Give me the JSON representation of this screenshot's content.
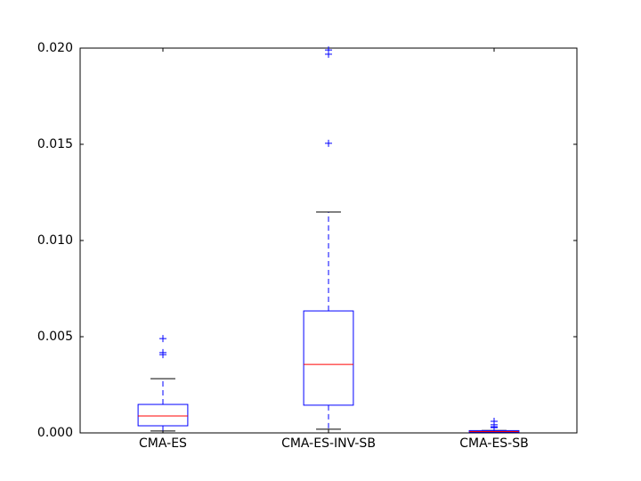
{
  "chart_data": {
    "type": "box",
    "categories": [
      "CMA-ES",
      "CMA-ES-INV-SB",
      "CMA-ES-SB"
    ],
    "boxes": [
      {
        "whislo": 0.0001,
        "q1": 0.00037,
        "med": 0.00088,
        "q3": 0.00148,
        "whishi": 0.00282,
        "fliers": [
          0.00407,
          0.00417,
          0.0049
        ]
      },
      {
        "whislo": 0.00019,
        "q1": 0.00144,
        "med": 0.00356,
        "q3": 0.00634,
        "whishi": 0.01148,
        "fliers": [
          0.01505,
          0.01968,
          0.0199
        ]
      },
      {
        "whislo": 3e-05,
        "q1": 4e-05,
        "med": 7e-05,
        "q3": 0.00012,
        "whishi": 0.00013,
        "fliers": [
          0.00028,
          0.00032,
          0.00042,
          0.0006
        ]
      }
    ],
    "color": "#0000ff",
    "median_color": "#ff0000",
    "cap_color": "#000000",
    "ylim": [
      0,
      0.02
    ],
    "yticks": [
      {
        "value": 0,
        "label": "0.000"
      },
      {
        "value": 0.005,
        "label": "0.005"
      },
      {
        "value": 0.01,
        "label": "0.010"
      },
      {
        "value": 0.015,
        "label": "0.015"
      },
      {
        "value": 0.02,
        "label": "0.020"
      }
    ],
    "grid": false
  }
}
